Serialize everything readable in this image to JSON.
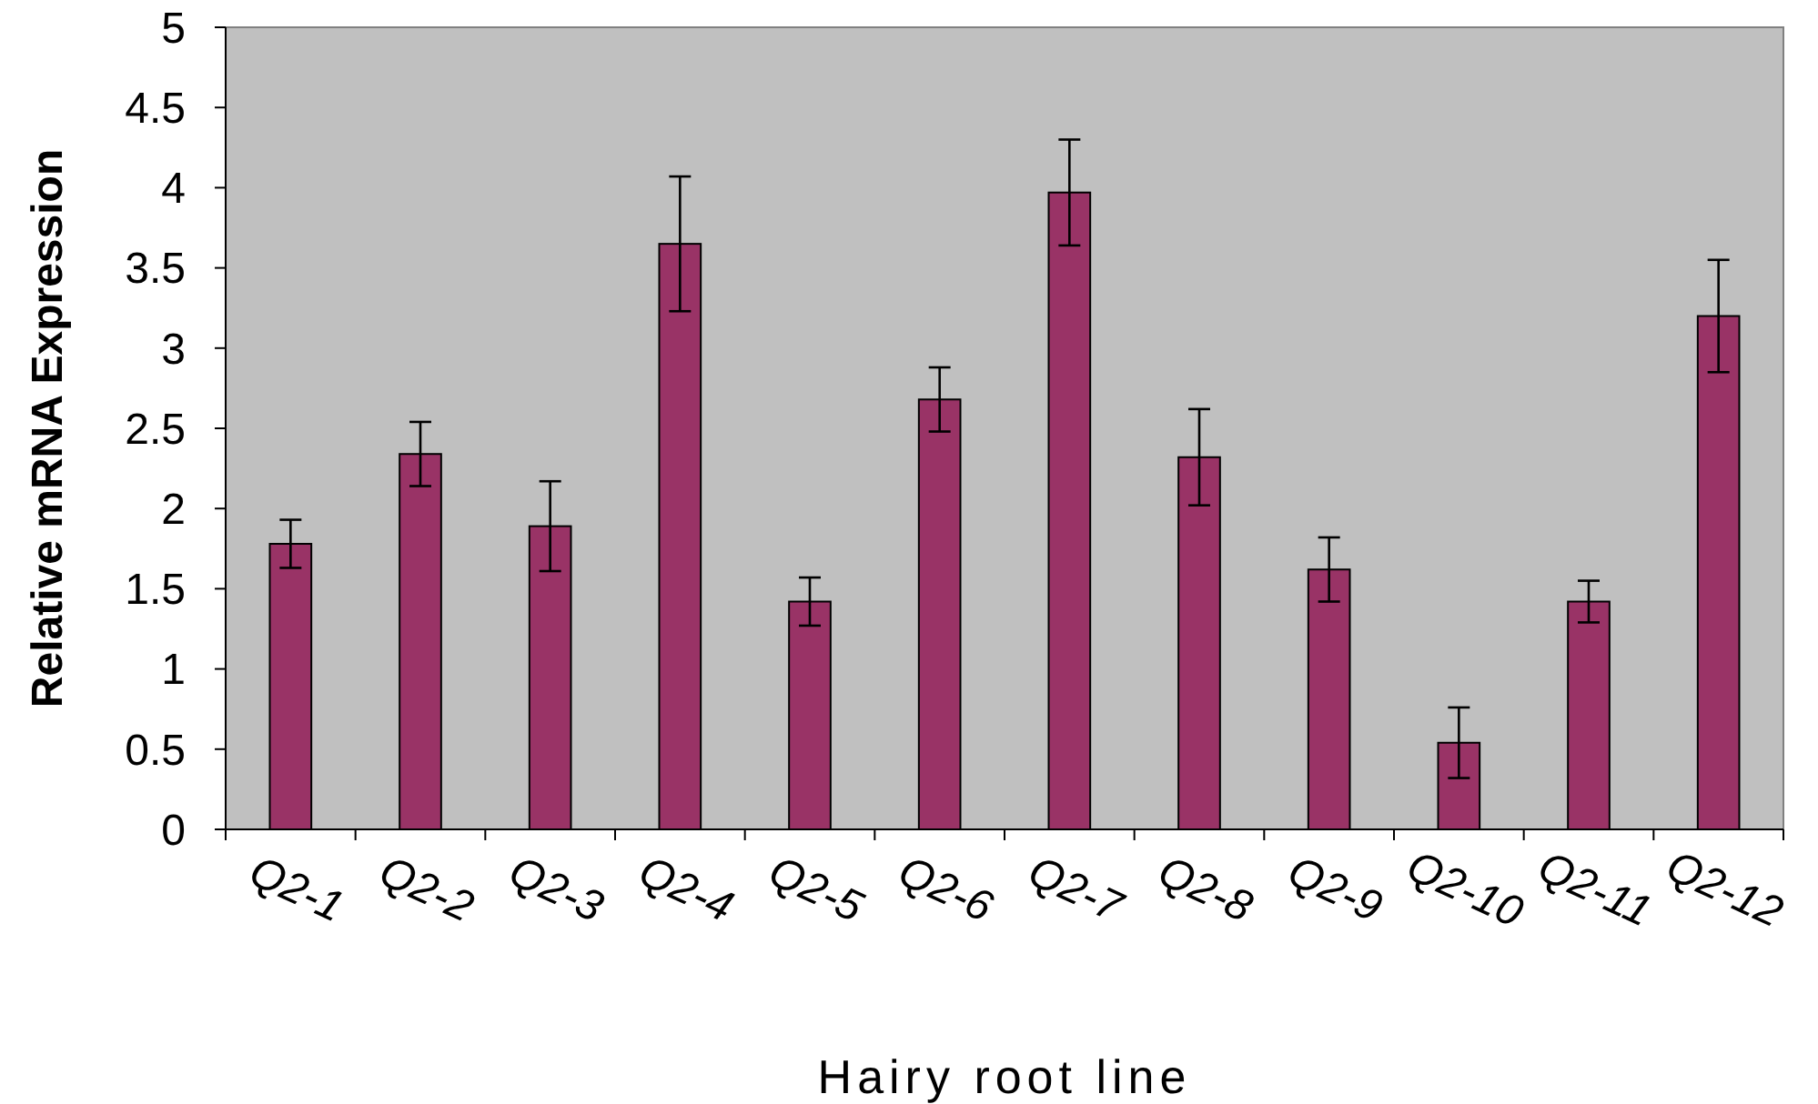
{
  "chart_data": {
    "type": "bar",
    "xlabel": "Hairy root line",
    "ylabel": "Relative mRNA Expression",
    "categories": [
      "Q2-1",
      "Q2-2",
      "Q2-3",
      "Q2-4",
      "Q2-5",
      "Q2-6",
      "Q2-7",
      "Q2-8",
      "Q2-9",
      "Q2-10",
      "Q2-11",
      "Q2-12"
    ],
    "values": [
      1.78,
      2.34,
      1.89,
      3.65,
      1.42,
      2.68,
      3.97,
      2.32,
      1.62,
      0.54,
      1.42,
      3.2
    ],
    "errors": [
      0.15,
      0.2,
      0.28,
      0.42,
      0.15,
      0.2,
      0.33,
      0.3,
      0.2,
      0.22,
      0.13,
      0.35
    ],
    "color": "#993366",
    "ylim": [
      0,
      5
    ],
    "yticks": [
      0,
      0.5,
      1,
      1.5,
      2,
      2.5,
      3,
      3.5,
      4,
      4.5,
      5
    ],
    "grid": false
  }
}
